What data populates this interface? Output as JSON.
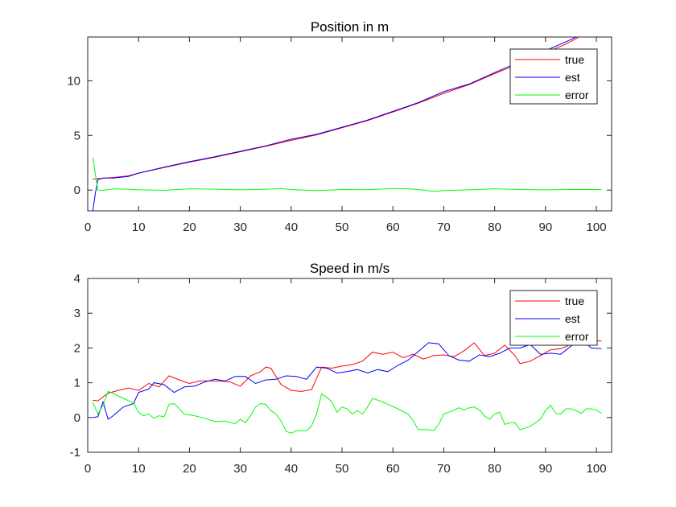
{
  "chart_data": [
    {
      "type": "line",
      "title": "Position in m",
      "xlabel": "",
      "ylabel": "",
      "xlim": [
        0,
        103
      ],
      "ylim": [
        -1.9,
        14
      ],
      "xticks": [
        0,
        10,
        20,
        30,
        40,
        50,
        60,
        70,
        80,
        90,
        100
      ],
      "yticks": [
        0,
        5,
        10
      ],
      "grid": false,
      "legend_position": "top-right",
      "series": [
        {
          "name": "true",
          "color": "#ff0000",
          "points": [
            [
              1,
              1.0
            ],
            [
              2,
              1.05
            ],
            [
              5,
              1.15
            ],
            [
              8,
              1.3
            ],
            [
              10,
              1.55
            ],
            [
              15,
              2.05
            ],
            [
              20,
              2.55
            ],
            [
              25,
              3.0
            ],
            [
              30,
              3.5
            ],
            [
              35,
              4.0
            ],
            [
              40,
              4.55
            ],
            [
              45,
              5.05
            ],
            [
              50,
              5.7
            ],
            [
              55,
              6.35
            ],
            [
              60,
              7.15
            ],
            [
              65,
              7.95
            ],
            [
              70,
              8.85
            ],
            [
              75,
              9.65
            ],
            [
              80,
              10.65
            ],
            [
              85,
              11.6
            ],
            [
              90,
              12.55
            ],
            [
              94,
              13.35
            ],
            [
              97,
              14.1
            ]
          ]
        },
        {
          "name": "est",
          "color": "#0000ff",
          "points": [
            [
              1,
              -1.9
            ],
            [
              1.5,
              -0.3
            ],
            [
              2,
              0.95
            ],
            [
              3,
              1.1
            ],
            [
              5,
              1.1
            ],
            [
              8,
              1.25
            ],
            [
              10,
              1.55
            ],
            [
              15,
              2.1
            ],
            [
              20,
              2.6
            ],
            [
              25,
              3.05
            ],
            [
              30,
              3.55
            ],
            [
              35,
              4.05
            ],
            [
              40,
              4.65
            ],
            [
              45,
              5.1
            ],
            [
              50,
              5.75
            ],
            [
              55,
              6.4
            ],
            [
              60,
              7.2
            ],
            [
              65,
              8.0
            ],
            [
              70,
              9.0
            ],
            [
              75,
              9.7
            ],
            [
              80,
              10.75
            ],
            [
              85,
              11.75
            ],
            [
              90,
              12.75
            ],
            [
              94,
              13.55
            ],
            [
              96,
              14.0
            ]
          ]
        },
        {
          "name": "error",
          "color": "#00ff00",
          "points": [
            [
              1,
              3.0
            ],
            [
              2,
              0.0
            ],
            [
              3,
              -0.02
            ],
            [
              5,
              0.1
            ],
            [
              8,
              0.08
            ],
            [
              10,
              0.02
            ],
            [
              15,
              -0.02
            ],
            [
              20,
              0.12
            ],
            [
              25,
              0.08
            ],
            [
              30,
              0.02
            ],
            [
              35,
              0.08
            ],
            [
              38,
              0.15
            ],
            [
              40,
              0.05
            ],
            [
              45,
              -0.05
            ],
            [
              50,
              0.05
            ],
            [
              55,
              0.03
            ],
            [
              60,
              0.15
            ],
            [
              63,
              0.12
            ],
            [
              65,
              0.05
            ],
            [
              68,
              -0.12
            ],
            [
              70,
              -0.05
            ],
            [
              75,
              0.02
            ],
            [
              80,
              0.12
            ],
            [
              85,
              0.05
            ],
            [
              90,
              0.02
            ],
            [
              95,
              0.05
            ],
            [
              101,
              0.05
            ]
          ]
        }
      ]
    },
    {
      "type": "line",
      "title": "Speed in m/s",
      "xlabel": "",
      "ylabel": "",
      "xlim": [
        0,
        103
      ],
      "ylim": [
        -1,
        4
      ],
      "xticks": [
        0,
        10,
        20,
        30,
        40,
        50,
        60,
        70,
        80,
        90,
        100
      ],
      "yticks": [
        -1,
        0,
        1,
        2,
        3,
        4
      ],
      "grid": false,
      "legend_position": "top-right",
      "series": [
        {
          "name": "true",
          "color": "#ff0000",
          "points": [
            [
              1,
              0.5
            ],
            [
              2,
              0.48
            ],
            [
              4,
              0.7
            ],
            [
              6,
              0.78
            ],
            [
              8,
              0.85
            ],
            [
              10,
              0.78
            ],
            [
              12,
              0.98
            ],
            [
              14,
              0.88
            ],
            [
              16,
              1.2
            ],
            [
              18,
              1.08
            ],
            [
              20,
              0.98
            ],
            [
              22,
              1.05
            ],
            [
              24,
              1.05
            ],
            [
              26,
              1.05
            ],
            [
              28,
              1.02
            ],
            [
              30,
              0.9
            ],
            [
              32,
              1.2
            ],
            [
              34,
              1.32
            ],
            [
              35,
              1.45
            ],
            [
              36,
              1.42
            ],
            [
              38,
              0.95
            ],
            [
              40,
              0.78
            ],
            [
              42,
              0.75
            ],
            [
              44,
              0.8
            ],
            [
              46,
              1.45
            ],
            [
              48,
              1.42
            ],
            [
              50,
              1.48
            ],
            [
              52,
              1.52
            ],
            [
              54,
              1.62
            ],
            [
              56,
              1.88
            ],
            [
              58,
              1.82
            ],
            [
              60,
              1.88
            ],
            [
              62,
              1.72
            ],
            [
              64,
              1.82
            ],
            [
              66,
              1.68
            ],
            [
              68,
              1.78
            ],
            [
              70,
              1.8
            ],
            [
              72,
              1.75
            ],
            [
              74,
              1.92
            ],
            [
              76,
              2.15
            ],
            [
              78,
              1.78
            ],
            [
              80,
              1.85
            ],
            [
              82,
              2.08
            ],
            [
              84,
              1.78
            ],
            [
              85,
              1.55
            ],
            [
              87,
              1.62
            ],
            [
              89,
              1.78
            ],
            [
              91,
              1.95
            ],
            [
              93,
              1.98
            ],
            [
              95,
              2.1
            ],
            [
              97,
              2.08
            ],
            [
              99,
              2.22
            ],
            [
              101,
              2.2
            ]
          ]
        },
        {
          "name": "est",
          "color": "#0000ff",
          "points": [
            [
              1,
              0.0
            ],
            [
              2,
              0.02
            ],
            [
              3,
              0.45
            ],
            [
              4,
              -0.05
            ],
            [
              5,
              0.05
            ],
            [
              7,
              0.3
            ],
            [
              9,
              0.4
            ],
            [
              10,
              0.72
            ],
            [
              12,
              0.82
            ],
            [
              13,
              1.0
            ],
            [
              15,
              0.95
            ],
            [
              17,
              0.72
            ],
            [
              19,
              0.88
            ],
            [
              21,
              0.9
            ],
            [
              23,
              1.02
            ],
            [
              25,
              1.1
            ],
            [
              27,
              1.05
            ],
            [
              29,
              1.18
            ],
            [
              31,
              1.18
            ],
            [
              33,
              0.98
            ],
            [
              35,
              1.08
            ],
            [
              37,
              1.1
            ],
            [
              39,
              1.2
            ],
            [
              41,
              1.18
            ],
            [
              43,
              1.1
            ],
            [
              45,
              1.45
            ],
            [
              47,
              1.42
            ],
            [
              49,
              1.28
            ],
            [
              51,
              1.32
            ],
            [
              53,
              1.38
            ],
            [
              55,
              1.28
            ],
            [
              57,
              1.38
            ],
            [
              59,
              1.32
            ],
            [
              61,
              1.5
            ],
            [
              63,
              1.65
            ],
            [
              65,
              1.9
            ],
            [
              67,
              2.15
            ],
            [
              69,
              2.12
            ],
            [
              71,
              1.78
            ],
            [
              73,
              1.65
            ],
            [
              75,
              1.62
            ],
            [
              77,
              1.8
            ],
            [
              79,
              1.75
            ],
            [
              81,
              1.85
            ],
            [
              83,
              2.0
            ],
            [
              85,
              2.0
            ],
            [
              87,
              2.1
            ],
            [
              89,
              1.82
            ],
            [
              91,
              1.85
            ],
            [
              93,
              1.82
            ],
            [
              95,
              2.05
            ],
            [
              97,
              2.25
            ],
            [
              99,
              2.0
            ],
            [
              101,
              1.98
            ]
          ]
        },
        {
          "name": "error",
          "color": "#00ff00",
          "points": [
            [
              1,
              0.45
            ],
            [
              2,
              0.1
            ],
            [
              3,
              0.35
            ],
            [
              4,
              0.75
            ],
            [
              5,
              0.7
            ],
            [
              6,
              0.62
            ],
            [
              7,
              0.55
            ],
            [
              9,
              0.42
            ],
            [
              10,
              0.15
            ],
            [
              11,
              0.05
            ],
            [
              12,
              0.1
            ],
            [
              13,
              -0.02
            ],
            [
              14,
              0.05
            ],
            [
              15,
              0.02
            ],
            [
              16,
              0.38
            ],
            [
              17,
              0.4
            ],
            [
              18,
              0.25
            ],
            [
              19,
              0.1
            ],
            [
              21,
              0.05
            ],
            [
              23,
              -0.02
            ],
            [
              25,
              -0.12
            ],
            [
              27,
              -0.1
            ],
            [
              29,
              -0.18
            ],
            [
              30,
              -0.05
            ],
            [
              31,
              -0.15
            ],
            [
              32,
              0.05
            ],
            [
              33,
              0.3
            ],
            [
              34,
              0.4
            ],
            [
              35,
              0.38
            ],
            [
              36,
              0.2
            ],
            [
              37,
              0.1
            ],
            [
              38,
              -0.1
            ],
            [
              39,
              -0.4
            ],
            [
              40,
              -0.45
            ],
            [
              41,
              -0.38
            ],
            [
              43,
              -0.38
            ],
            [
              44,
              -0.25
            ],
            [
              45,
              0.1
            ],
            [
              46,
              0.68
            ],
            [
              47,
              0.58
            ],
            [
              48,
              0.45
            ],
            [
              49,
              0.15
            ],
            [
              50,
              0.3
            ],
            [
              51,
              0.25
            ],
            [
              52,
              0.1
            ],
            [
              53,
              0.2
            ],
            [
              54,
              0.1
            ],
            [
              55,
              0.3
            ],
            [
              56,
              0.55
            ],
            [
              57,
              0.5
            ],
            [
              58,
              0.45
            ],
            [
              59,
              0.38
            ],
            [
              61,
              0.25
            ],
            [
              63,
              0.1
            ],
            [
              64,
              -0.1
            ],
            [
              65,
              -0.35
            ],
            [
              67,
              -0.35
            ],
            [
              68,
              -0.38
            ],
            [
              69,
              -0.2
            ],
            [
              70,
              0.1
            ],
            [
              71,
              0.15
            ],
            [
              73,
              0.28
            ],
            [
              74,
              0.22
            ],
            [
              75,
              0.28
            ],
            [
              76,
              0.3
            ],
            [
              77,
              0.22
            ],
            [
              78,
              0.05
            ],
            [
              79,
              -0.05
            ],
            [
              80,
              0.1
            ],
            [
              81,
              0.15
            ],
            [
              82,
              -0.2
            ],
            [
              83,
              -0.15
            ],
            [
              84,
              -0.15
            ],
            [
              85,
              -0.35
            ],
            [
              86,
              -0.3
            ],
            [
              87,
              -0.25
            ],
            [
              89,
              -0.05
            ],
            [
              90,
              0.2
            ],
            [
              91,
              0.35
            ],
            [
              92,
              0.12
            ],
            [
              93,
              0.1
            ],
            [
              94,
              0.25
            ],
            [
              95,
              0.25
            ],
            [
              96,
              0.2
            ],
            [
              97,
              0.12
            ],
            [
              98,
              0.25
            ],
            [
              99,
              0.25
            ],
            [
              100,
              0.22
            ],
            [
              101,
              0.12
            ]
          ]
        }
      ]
    }
  ]
}
